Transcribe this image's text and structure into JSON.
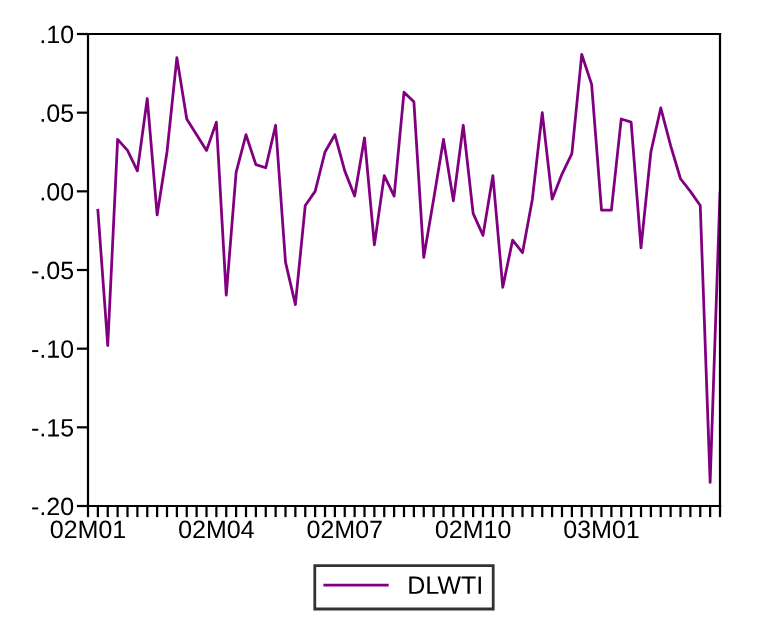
{
  "chart_data": {
    "type": "line",
    "categories": [
      "02M01",
      null,
      null,
      null,
      null,
      null,
      null,
      null,
      null,
      null,
      null,
      null,
      null,
      "02M04",
      null,
      null,
      null,
      null,
      null,
      null,
      null,
      null,
      null,
      null,
      null,
      null,
      "02M07",
      null,
      null,
      null,
      null,
      null,
      null,
      null,
      null,
      null,
      null,
      null,
      null,
      "02M10",
      null,
      null,
      null,
      null,
      null,
      null,
      null,
      null,
      null,
      null,
      null,
      null,
      "03M01",
      null,
      null,
      null,
      null,
      null,
      null,
      null,
      null,
      null,
      null,
      null,
      null
    ],
    "series": [
      {
        "name": "DLWTI",
        "color": "#800080",
        "values": [
          null,
          -0.012,
          -0.098,
          0.033,
          0.026,
          0.013,
          0.059,
          -0.015,
          0.025,
          0.085,
          0.046,
          0.036,
          0.026,
          0.044,
          -0.066,
          0.012,
          0.036,
          0.017,
          0.015,
          0.042,
          -0.045,
          -0.072,
          -0.009,
          0.0,
          0.025,
          0.036,
          0.013,
          -0.003,
          0.034,
          -0.034,
          0.01,
          -0.003,
          0.063,
          0.057,
          -0.042,
          -0.005,
          0.033,
          -0.006,
          0.042,
          -0.014,
          -0.028,
          0.01,
          -0.061,
          -0.031,
          -0.039,
          -0.005,
          0.05,
          -0.005,
          0.011,
          0.024,
          0.087,
          0.068,
          -0.012,
          -0.012,
          0.046,
          0.044,
          -0.036,
          0.025,
          0.053,
          0.029,
          0.008,
          0.0,
          -0.009,
          -0.185,
          -0.001
        ]
      }
    ],
    "ylim": [
      -0.2,
      0.1
    ],
    "yticks": [
      {
        "value": -0.2,
        "label": "-.20"
      },
      {
        "value": -0.15,
        "label": "-.15"
      },
      {
        "value": -0.1,
        "label": "-.10"
      },
      {
        "value": -0.05,
        "label": "-.05"
      },
      {
        "value": 0.0,
        "label": ".00"
      },
      {
        "value": 0.05,
        "label": ".05"
      },
      {
        "value": 0.1,
        "label": ".10"
      }
    ],
    "legend": "bottom",
    "grid": false,
    "marker": "none",
    "line_style": "solid"
  }
}
